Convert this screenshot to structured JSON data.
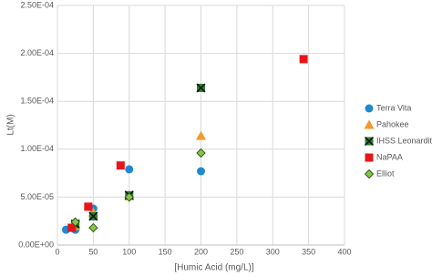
{
  "chart_data": {
    "type": "scatter",
    "x_label": "[Humic Acid (mg/L)]",
    "y_label": "Lt(M)",
    "xlim": [
      0,
      400
    ],
    "xticks": [
      0,
      50,
      100,
      150,
      200,
      250,
      300,
      350,
      400
    ],
    "ylim": [
      0,
      0.00025
    ],
    "yticks": [
      {
        "value": 0,
        "label": "0.00E+00"
      },
      {
        "value": 5e-05,
        "label": "5.00E-05"
      },
      {
        "value": 0.0001,
        "label": "1.00E-04"
      },
      {
        "value": 0.00015,
        "label": "1.50E-04"
      },
      {
        "value": 0.0002,
        "label": "2.00E-04"
      },
      {
        "value": 0.00025,
        "label": "2.50E-04"
      }
    ],
    "grid": true,
    "legend": "right",
    "series": [
      {
        "name": "Terra Vita",
        "color": "#1f88d0",
        "marker": "circle",
        "x": [
          12,
          25,
          50,
          100,
          200
        ],
        "values": [
          1.6e-05,
          1.6e-05,
          3.8e-05,
          7.9e-05,
          7.7e-05
        ]
      },
      {
        "name": "Pahokee",
        "color": "#f39a2a",
        "marker": "triangle",
        "x": [
          25,
          50,
          100,
          200
        ],
        "values": [
          2e-05,
          3.4e-05,
          5.1e-05,
          0.000114
        ]
      },
      {
        "name": "IHSS Leonardites",
        "color": "#2e7d32",
        "marker": "xsquare",
        "x": [
          25,
          50,
          100,
          200
        ],
        "values": [
          2.2e-05,
          3e-05,
          5.2e-05,
          0.000164
        ]
      },
      {
        "name": "NaPAA",
        "color": "#e8141b",
        "marker": "square",
        "x": [
          20,
          43,
          88,
          343
        ],
        "values": [
          1.8e-05,
          4e-05,
          8.3e-05,
          0.000194
        ]
      },
      {
        "name": "Elliot",
        "color": "#8bc34a",
        "marker": "diamond",
        "x": [
          25,
          50,
          100,
          200
        ],
        "values": [
          2.4e-05,
          1.8e-05,
          5e-05,
          9.6e-05
        ]
      }
    ]
  }
}
